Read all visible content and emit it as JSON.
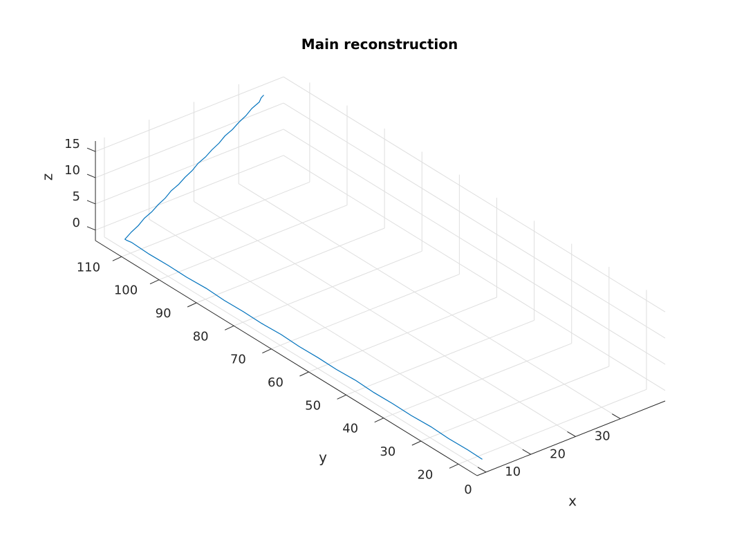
{
  "chart_data": {
    "type": "line",
    "title": "Main reconstruction",
    "xlabel": "x",
    "ylabel": "y",
    "zlabel": "z",
    "xlim": [
      -2,
      40
    ],
    "ylim": [
      15,
      117
    ],
    "zlim": [
      -2,
      17
    ],
    "xticks": [
      0,
      10,
      20,
      30
    ],
    "yticks": [
      20,
      30,
      40,
      50,
      60,
      70,
      80,
      90,
      100,
      110
    ],
    "zticks": [
      0,
      5,
      10,
      15
    ],
    "grid": true,
    "series": [
      {
        "color": "#0072BD",
        "points": [
          [
            0,
            16,
            0
          ],
          [
            0.1,
            20,
            0
          ],
          [
            0,
            25,
            0
          ],
          [
            0.2,
            30,
            0
          ],
          [
            0,
            35,
            0
          ],
          [
            0.1,
            40,
            0
          ],
          [
            0,
            45,
            0
          ],
          [
            0.2,
            50,
            0
          ],
          [
            0,
            55,
            0
          ],
          [
            0.1,
            60,
            0
          ],
          [
            0,
            65,
            0
          ],
          [
            0.2,
            70,
            0
          ],
          [
            0,
            75,
            0
          ],
          [
            0.1,
            80,
            0
          ],
          [
            0,
            85,
            0
          ],
          [
            0.2,
            90,
            0
          ],
          [
            0,
            95,
            0
          ],
          [
            0.1,
            100,
            0
          ],
          [
            0,
            105,
            0
          ],
          [
            0.2,
            110,
            0
          ],
          [
            0,
            111,
            0
          ],
          [
            0,
            111.5,
            0
          ],
          [
            1.5,
            111.6,
            0.8
          ],
          [
            3,
            111.5,
            1.6
          ],
          [
            4.5,
            111.7,
            2.4
          ],
          [
            6,
            111.5,
            3.2
          ],
          [
            7.5,
            111.6,
            4.0
          ],
          [
            9,
            111.5,
            4.8
          ],
          [
            10.5,
            111.7,
            5.6
          ],
          [
            12,
            111.5,
            6.4
          ],
          [
            13.5,
            111.6,
            7.2
          ],
          [
            15,
            111.5,
            8.0
          ],
          [
            16.5,
            111.7,
            8.8
          ],
          [
            18,
            111.5,
            9.6
          ],
          [
            19.5,
            111.6,
            10.4
          ],
          [
            21,
            111.5,
            11.2
          ],
          [
            22.5,
            111.7,
            12.0
          ],
          [
            24,
            111.5,
            12.8
          ],
          [
            25.5,
            111.6,
            13.6
          ],
          [
            27,
            111.5,
            14.4
          ],
          [
            28.5,
            111.7,
            15.2
          ],
          [
            30,
            111.5,
            16.0
          ],
          [
            30.5,
            111.6,
            16.6
          ],
          [
            31,
            111.5,
            17.0
          ]
        ]
      }
    ]
  }
}
